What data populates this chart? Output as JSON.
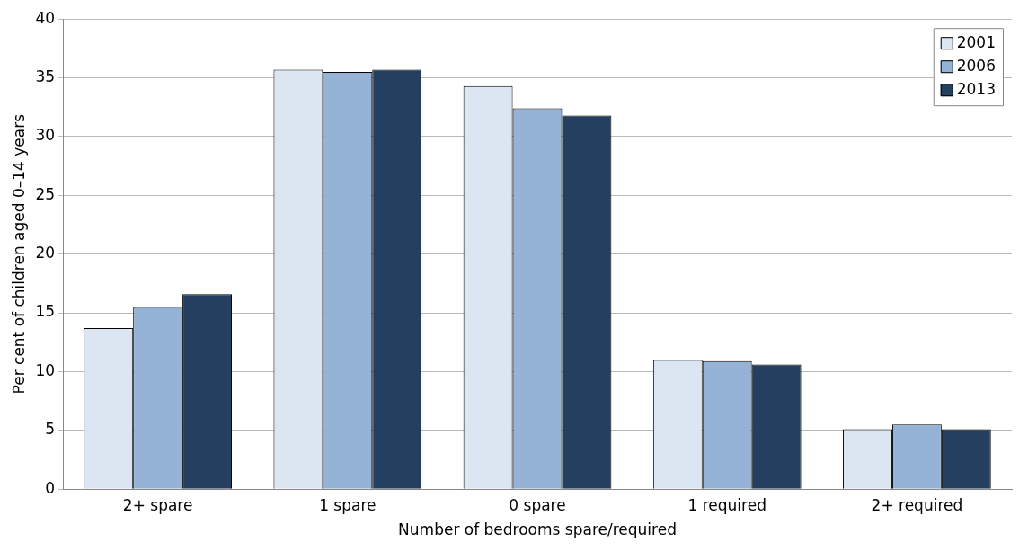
{
  "chart_data": {
    "type": "bar",
    "xlabel": "Number of bedrooms spare/required",
    "ylabel": "Per cent of children aged 0–14 years",
    "categories": [
      "2+ spare",
      "1 spare",
      "0 spare",
      "1 required",
      "2+ required"
    ],
    "series": [
      {
        "name": "2001",
        "color": "#dce6f2",
        "values": [
          13.7,
          35.7,
          34.3,
          11.0,
          5.1
        ]
      },
      {
        "name": "2006",
        "color": "#95b3d7",
        "values": [
          15.5,
          35.5,
          32.4,
          10.9,
          5.5
        ]
      },
      {
        "name": "2013",
        "color": "#243f60",
        "values": [
          16.6,
          35.7,
          31.8,
          10.6,
          5.1
        ]
      }
    ],
    "ylim": [
      0,
      40
    ],
    "yticks": [
      0,
      5,
      10,
      15,
      20,
      25,
      30,
      35,
      40
    ],
    "grid": "y",
    "legend": "top right"
  }
}
